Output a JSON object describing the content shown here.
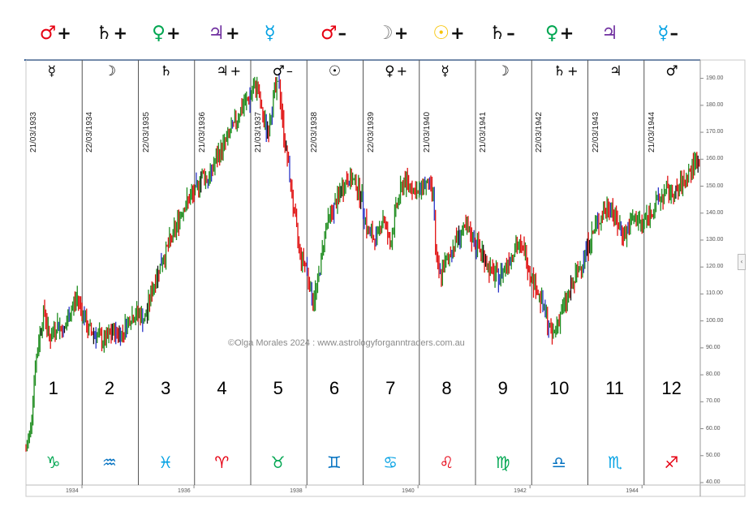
{
  "chart_data": {
    "type": "candlestick",
    "watermark": "©Olga Morales 2024 : www.astrologyforganntraders.com.au",
    "x_axis": {
      "ticks": [
        "1934",
        "1936",
        "1938",
        "1940",
        "1942",
        "1944"
      ]
    },
    "y_axis": {
      "range": [
        40,
        195
      ],
      "ticks": [
        "190.00",
        "180.00",
        "170.00",
        "160.00",
        "150.00",
        "140.00",
        "130.00",
        "120.00",
        "110.00",
        "100.00",
        "90.00",
        "80.00",
        "70.00",
        "60.00",
        "50.00",
        "40.00"
      ]
    },
    "columns": [
      {
        "house": "1",
        "date": "21/03/1933",
        "top_planet": "☿",
        "top_sign": "",
        "header_planet": "♂",
        "header_sign": "+",
        "header_color": "#e60012",
        "zodiac": "♑",
        "zodiac_color": "#00a651"
      },
      {
        "house": "2",
        "date": "22/03/1934",
        "top_planet": "☽",
        "top_sign": "",
        "header_planet": "♄",
        "header_sign": "+",
        "header_color": "#111111",
        "zodiac": "♒",
        "zodiac_color": "#0070c0"
      },
      {
        "house": "3",
        "date": "22/03/1935",
        "top_planet": "♄",
        "top_sign": "",
        "header_planet": "♀",
        "header_sign": "+",
        "header_color": "#00a651",
        "zodiac": "♓",
        "zodiac_color": "#00a0e3"
      },
      {
        "house": "4",
        "date": "21/03/1936",
        "top_planet": "♃",
        "top_sign": "+",
        "header_planet": "♃",
        "header_sign": "+",
        "header_color": "#7030a0",
        "zodiac": "♈",
        "zodiac_color": "#e60012"
      },
      {
        "house": "5",
        "date": "21/03/1937",
        "top_planet": "♂",
        "top_sign": "–",
        "header_planet": "☿",
        "header_sign": "",
        "header_color": "#00a0e3",
        "zodiac": "♉",
        "zodiac_color": "#00a651"
      },
      {
        "house": "6",
        "date": "22/03/1938",
        "top_planet": "☉",
        "top_sign": "",
        "header_planet": "♂",
        "header_sign": "–",
        "header_color": "#e60012",
        "zodiac": "♊",
        "zodiac_color": "#0070c0"
      },
      {
        "house": "7",
        "date": "22/03/1939",
        "top_planet": "♀",
        "top_sign": "+",
        "header_planet": "☽",
        "header_sign": "+",
        "header_color": "#808080",
        "zodiac": "♋",
        "zodiac_color": "#00a0e3"
      },
      {
        "house": "8",
        "date": "21/03/1940",
        "top_planet": "☿",
        "top_sign": "",
        "header_planet": "☉",
        "header_sign": "+",
        "header_color": "#f7c300",
        "zodiac": "♌",
        "zodiac_color": "#e60012"
      },
      {
        "house": "9",
        "date": "21/03/1941",
        "top_planet": "☽",
        "top_sign": "",
        "header_planet": "♄",
        "header_sign": "–",
        "header_color": "#111111",
        "zodiac": "♍",
        "zodiac_color": "#00a651"
      },
      {
        "house": "10",
        "date": "22/03/1942",
        "top_planet": "♄",
        "top_sign": "+",
        "header_planet": "♀",
        "header_sign": "+",
        "header_color": "#00a651",
        "zodiac": "♎",
        "zodiac_color": "#0070c0"
      },
      {
        "house": "11",
        "date": "22/03/1943",
        "top_planet": "♃",
        "top_sign": "",
        "header_planet": "♃",
        "header_sign": "",
        "header_color": "#7030a0",
        "zodiac": "♏",
        "zodiac_color": "#00a0e3"
      },
      {
        "house": "12",
        "date": "21/03/1944",
        "top_planet": "♂",
        "top_sign": "",
        "header_planet": "☿",
        "header_sign": "–",
        "header_color": "#00a0e3",
        "zodiac": "♐",
        "zodiac_color": "#e60012"
      }
    ],
    "price_path": [
      {
        "t": 1933.0,
        "v": 52
      },
      {
        "t": 1933.08,
        "v": 60
      },
      {
        "t": 1933.16,
        "v": 82
      },
      {
        "t": 1933.25,
        "v": 96
      },
      {
        "t": 1933.33,
        "v": 104
      },
      {
        "t": 1933.42,
        "v": 93
      },
      {
        "t": 1933.55,
        "v": 99
      },
      {
        "t": 1933.68,
        "v": 96
      },
      {
        "t": 1933.8,
        "v": 104
      },
      {
        "t": 1933.92,
        "v": 109
      },
      {
        "t": 1934.0,
        "v": 104
      },
      {
        "t": 1934.1,
        "v": 97
      },
      {
        "t": 1934.25,
        "v": 95
      },
      {
        "t": 1934.4,
        "v": 92
      },
      {
        "t": 1934.55,
        "v": 96
      },
      {
        "t": 1934.7,
        "v": 95
      },
      {
        "t": 1934.85,
        "v": 101
      },
      {
        "t": 1935.0,
        "v": 103
      },
      {
        "t": 1935.12,
        "v": 100
      },
      {
        "t": 1935.22,
        "v": 109
      },
      {
        "t": 1935.35,
        "v": 118
      },
      {
        "t": 1935.5,
        "v": 126
      },
      {
        "t": 1935.65,
        "v": 133
      },
      {
        "t": 1935.8,
        "v": 142
      },
      {
        "t": 1935.95,
        "v": 146
      },
      {
        "t": 1936.05,
        "v": 149
      },
      {
        "t": 1936.15,
        "v": 155
      },
      {
        "t": 1936.25,
        "v": 152
      },
      {
        "t": 1936.4,
        "v": 160
      },
      {
        "t": 1936.55,
        "v": 166
      },
      {
        "t": 1936.7,
        "v": 172
      },
      {
        "t": 1936.85,
        "v": 179
      },
      {
        "t": 1937.0,
        "v": 183
      },
      {
        "t": 1937.12,
        "v": 188
      },
      {
        "t": 1937.22,
        "v": 176
      },
      {
        "t": 1937.32,
        "v": 170
      },
      {
        "t": 1937.42,
        "v": 184
      },
      {
        "t": 1937.52,
        "v": 188
      },
      {
        "t": 1937.6,
        "v": 170
      },
      {
        "t": 1937.7,
        "v": 155
      },
      {
        "t": 1937.8,
        "v": 138
      },
      {
        "t": 1937.9,
        "v": 124
      },
      {
        "t": 1938.0,
        "v": 121
      },
      {
        "t": 1938.12,
        "v": 107
      },
      {
        "t": 1938.22,
        "v": 115
      },
      {
        "t": 1938.35,
        "v": 135
      },
      {
        "t": 1938.5,
        "v": 142
      },
      {
        "t": 1938.62,
        "v": 148
      },
      {
        "t": 1938.75,
        "v": 153
      },
      {
        "t": 1938.9,
        "v": 151
      },
      {
        "t": 1939.0,
        "v": 145
      },
      {
        "t": 1939.1,
        "v": 133
      },
      {
        "t": 1939.25,
        "v": 130
      },
      {
        "t": 1939.38,
        "v": 139
      },
      {
        "t": 1939.5,
        "v": 128
      },
      {
        "t": 1939.62,
        "v": 143
      },
      {
        "t": 1939.75,
        "v": 152
      },
      {
        "t": 1939.88,
        "v": 150
      },
      {
        "t": 1940.0,
        "v": 147
      },
      {
        "t": 1940.1,
        "v": 151
      },
      {
        "t": 1940.2,
        "v": 150
      },
      {
        "t": 1940.28,
        "v": 147
      },
      {
        "t": 1940.32,
        "v": 121
      },
      {
        "t": 1940.4,
        "v": 117
      },
      {
        "t": 1940.55,
        "v": 124
      },
      {
        "t": 1940.7,
        "v": 131
      },
      {
        "t": 1940.85,
        "v": 134
      },
      {
        "t": 1941.0,
        "v": 130
      },
      {
        "t": 1941.15,
        "v": 125
      },
      {
        "t": 1941.3,
        "v": 118
      },
      {
        "t": 1941.45,
        "v": 116
      },
      {
        "t": 1941.6,
        "v": 122
      },
      {
        "t": 1941.75,
        "v": 128
      },
      {
        "t": 1941.9,
        "v": 126
      },
      {
        "t": 1942.0,
        "v": 118
      },
      {
        "t": 1942.12,
        "v": 112
      },
      {
        "t": 1942.22,
        "v": 106
      },
      {
        "t": 1942.32,
        "v": 99
      },
      {
        "t": 1942.4,
        "v": 94
      },
      {
        "t": 1942.55,
        "v": 103
      },
      {
        "t": 1942.7,
        "v": 110
      },
      {
        "t": 1942.85,
        "v": 118
      },
      {
        "t": 1943.0,
        "v": 126
      },
      {
        "t": 1943.15,
        "v": 134
      },
      {
        "t": 1943.3,
        "v": 140
      },
      {
        "t": 1943.45,
        "v": 143
      },
      {
        "t": 1943.55,
        "v": 136
      },
      {
        "t": 1943.7,
        "v": 132
      },
      {
        "t": 1943.85,
        "v": 138
      },
      {
        "t": 1944.0,
        "v": 136
      },
      {
        "t": 1944.15,
        "v": 140
      },
      {
        "t": 1944.3,
        "v": 145
      },
      {
        "t": 1944.45,
        "v": 148
      },
      {
        "t": 1944.6,
        "v": 147
      },
      {
        "t": 1944.75,
        "v": 152
      },
      {
        "t": 1944.9,
        "v": 157
      },
      {
        "t": 1945.0,
        "v": 160
      },
      {
        "t": 1945.04,
        "v": 155
      }
    ],
    "colors": {
      "up": "#1e8c1e",
      "down": "#e01010",
      "neutral": "#2a35c8",
      "dark": "#111111"
    }
  }
}
